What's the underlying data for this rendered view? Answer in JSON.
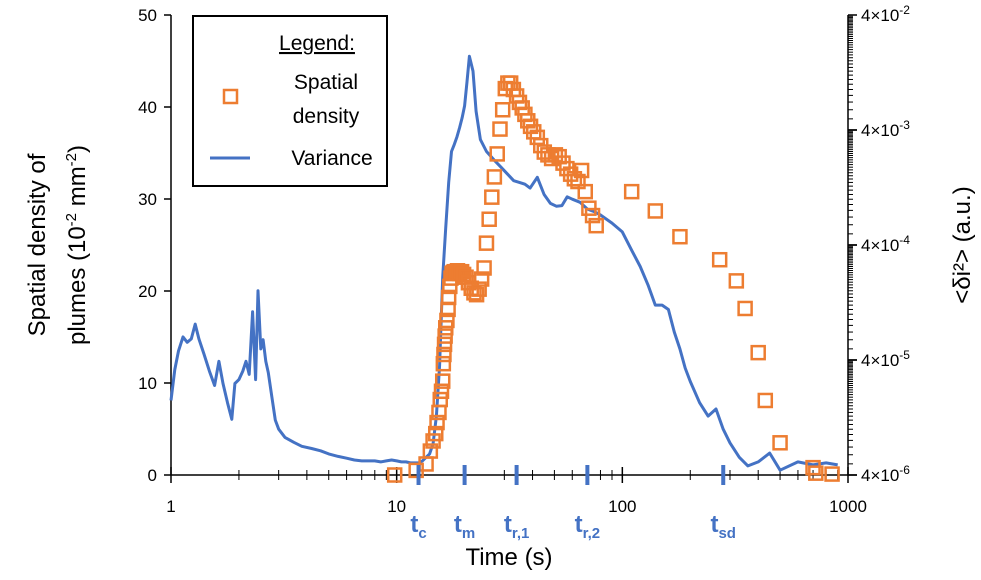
{
  "chart_data": {
    "type": "line+scatter",
    "xlabel": "Time (s)",
    "x_scale": "log",
    "xlim": [
      1,
      1000
    ],
    "x_ticks": [
      {
        "value": 1,
        "label": "1"
      },
      {
        "value": 10,
        "label": "10"
      },
      {
        "value": 100,
        "label": "100"
      },
      {
        "value": 1000,
        "label": "1000"
      }
    ],
    "ylabel_left": {
      "line1": "Spatial density of",
      "line2_pre": "plumes (10",
      "line2_sup1": "-2",
      "line2_mid": " mm",
      "line2_sup2": "-2",
      "line2_post": ")"
    },
    "ylim_left": [
      0,
      50
    ],
    "y_ticks_left": [
      {
        "value": 0,
        "label": "0"
      },
      {
        "value": 10,
        "label": "10"
      },
      {
        "value": 20,
        "label": "20"
      },
      {
        "value": 30,
        "label": "30"
      },
      {
        "value": 40,
        "label": "40"
      },
      {
        "value": 50,
        "label": "50"
      }
    ],
    "ylabel_right": "<δi²> (a.u.)",
    "y_scale_right": "log",
    "ylim_right": [
      4e-06,
      0.04
    ],
    "y_ticks_right": [
      {
        "value": 4e-06,
        "base": "4×10",
        "exp": "-6"
      },
      {
        "value": 4e-05,
        "base": "4×10",
        "exp": "-5"
      },
      {
        "value": 0.0004,
        "base": "4×10",
        "exp": "-4"
      },
      {
        "value": 0.004,
        "base": "4×10",
        "exp": "-3"
      },
      {
        "value": 0.04,
        "base": "4×10",
        "exp": "-2"
      }
    ],
    "legend": {
      "title": "Legend:",
      "items": [
        {
          "label_lines": [
            "Spatial",
            "density"
          ],
          "marker": "square-open",
          "color": "#ED7D31"
        },
        {
          "label_lines": [
            "Variance"
          ],
          "marker": "line",
          "color": "#4472C4"
        }
      ],
      "position": "top-left"
    },
    "series": [
      {
        "name": "Spatial density",
        "axis": "left",
        "marker": "square-open",
        "color": "#ED7D31",
        "x": [
          9.8,
          12.2,
          13.5,
          14.1,
          14.5,
          14.9,
          15.1,
          15.4,
          15.6,
          15.8,
          16.0,
          16.1,
          16.2,
          16.3,
          16.4,
          16.5,
          16.7,
          16.9,
          17.0,
          17.2,
          17.4,
          17.6,
          17.8,
          18.0,
          18.3,
          18.6,
          19.0,
          19.4,
          19.8,
          20.3,
          20.8,
          21.4,
          22.0,
          22.6,
          23.2,
          23.8,
          24.4,
          25.0,
          25.7,
          26.4,
          27.1,
          27.9,
          28.7,
          29.5,
          30.3,
          31.1,
          32.0,
          32.9,
          34.0,
          35.0,
          36.0,
          37.0,
          38.1,
          39.2,
          40.5,
          42.0,
          43.5,
          45.1,
          46.8,
          48.6,
          50.5,
          52.5,
          54.6,
          56.8,
          59.0,
          61.3,
          63.6,
          66.0,
          68.5,
          71.1,
          73.8,
          76.6,
          110.0,
          140.0,
          180.0,
          270.0,
          320.0,
          350.0,
          400.0,
          430.0,
          500.0,
          700.0,
          720.0,
          850.0
        ],
        "y": [
          0.0,
          0.5,
          1.2,
          2.6,
          3.7,
          4.5,
          5.7,
          6.8,
          8.2,
          9.1,
          10.2,
          12.1,
          13.1,
          14.2,
          15.1,
          16.0,
          16.8,
          18.0,
          19.3,
          20.5,
          21.4,
          21.9,
          22.0,
          22.1,
          22.0,
          22.2,
          21.9,
          22.1,
          21.8,
          21.5,
          20.9,
          20.3,
          19.8,
          19.6,
          20.2,
          21.3,
          22.5,
          25.2,
          27.8,
          30.2,
          32.4,
          34.9,
          37.6,
          39.7,
          42.0,
          42.6,
          42.6,
          41.9,
          41.2,
          40.5,
          39.9,
          39.2,
          38.5,
          37.9,
          37.3,
          36.7,
          35.8,
          35.1,
          34.8,
          34.4,
          34.8,
          34.6,
          33.9,
          33.3,
          32.7,
          32.2,
          31.9,
          33.1,
          30.8,
          29.0,
          28.2,
          27.1,
          30.8,
          28.7,
          25.9,
          23.4,
          21.1,
          18.1,
          13.3,
          8.1,
          3.5,
          0.8,
          0.2,
          0.1
        ]
      },
      {
        "name": "Variance",
        "axis": "right",
        "marker": "line",
        "color": "#4472C4",
        "x": [
          1.0,
          1.04,
          1.08,
          1.13,
          1.18,
          1.23,
          1.28,
          1.33,
          1.4,
          1.48,
          1.56,
          1.63,
          1.7,
          1.78,
          1.86,
          1.92,
          2.0,
          2.08,
          2.15,
          2.22,
          2.3,
          2.37,
          2.43,
          2.5,
          2.56,
          2.63,
          2.7,
          2.8,
          2.9,
          3.0,
          3.2,
          3.5,
          3.8,
          4.2,
          4.6,
          5.0,
          5.5,
          6.0,
          6.5,
          7.0,
          7.5,
          8.0,
          8.5,
          9.0,
          9.5,
          10.0,
          10.5,
          11.0,
          11.5,
          12.0,
          12.5,
          13.0,
          13.5,
          14.0,
          14.5,
          15.0,
          15.5,
          16.0,
          16.5,
          17.0,
          17.5,
          18.0,
          18.5,
          19.0,
          19.5,
          20.0,
          20.5,
          21.0,
          21.8,
          22.5,
          23.5,
          25.0,
          27.0,
          29.0,
          31.0,
          33.0,
          35.0,
          37.0,
          39.0,
          42.0,
          45.0,
          48.0,
          51.0,
          54.0,
          57.0,
          60.0,
          65.0,
          70.0,
          75.0,
          80.0,
          90.0,
          100.0,
          110.0,
          120.0,
          130.0,
          140.0,
          150.0,
          160.0,
          170.0,
          180.0,
          190.0,
          200.0,
          220.0,
          240.0,
          260.0,
          280.0,
          300.0,
          330.0,
          360.0,
          400.0,
          450.0,
          500.0,
          600.0,
          700.0,
          800.0,
          900.0
        ],
        "y": [
          1.78e-05,
          3.3e-05,
          4.8e-05,
          6.35e-05,
          5.7e-05,
          6.1e-05,
          8.2e-05,
          6.1e-05,
          4.5e-05,
          3.2e-05,
          2.4e-05,
          3.9e-05,
          2.5e-05,
          1.7e-05,
          1.22e-05,
          2.5e-05,
          2.7e-05,
          3.2e-05,
          3.9e-05,
          3e-05,
          0.000105,
          2.7e-05,
          0.00016,
          5e-05,
          6e-05,
          3.9e-05,
          3.1e-05,
          1.9e-05,
          1.2e-05,
          1e-05,
          8.5e-06,
          7.7e-06,
          7.1e-06,
          6.8e-06,
          6.5e-06,
          6.1e-06,
          5.8e-06,
          5.6e-06,
          5.4e-06,
          5.3e-06,
          5.3e-06,
          5.3e-06,
          5.2e-06,
          5.3e-06,
          5.4e-06,
          5.3e-06,
          5.2e-06,
          5.2e-06,
          5.1e-06,
          5.1e-06,
          5.1e-06,
          5.3e-06,
          5.7e-06,
          6.1e-06,
          7.5e-06,
          1.3e-05,
          3.6e-05,
          0.00021,
          0.00056,
          0.0014,
          0.0026,
          0.003,
          0.0035,
          0.0042,
          0.0051,
          0.0065,
          0.0105,
          0.0175,
          0.013,
          0.0058,
          0.0033,
          0.0026,
          0.0022,
          0.0019,
          0.00165,
          0.00145,
          0.0014,
          0.00135,
          0.00125,
          0.00155,
          0.0011,
          0.00092,
          0.00087,
          0.00088,
          0.00105,
          0.001,
          0.00094,
          0.00082,
          0.00078,
          0.00073,
          0.00062,
          0.00052,
          0.00036,
          0.00026,
          0.00018,
          0.00012,
          0.00012,
          0.00011,
          7e-05,
          5e-05,
          3.4e-05,
          2.6e-05,
          1.7e-05,
          1.3e-05,
          1.5e-05,
          1e-05,
          7.6e-06,
          5.7e-06,
          4.8e-06,
          5.2e-06,
          6.2e-06,
          4.4e-06,
          5.2e-06,
          4.9e-06,
          5.1e-06,
          4.9e-06
        ]
      }
    ],
    "annotations": [
      {
        "x": 12.5,
        "base": "t",
        "sub": "c"
      },
      {
        "x": 20.0,
        "base": "t",
        "sub": "m"
      },
      {
        "x": 34.0,
        "base": "t",
        "sub": "r,1"
      },
      {
        "x": 70.0,
        "base": "t",
        "sub": "r,2"
      },
      {
        "x": 280.0,
        "base": "t",
        "sub": "sd"
      }
    ],
    "grid": false
  }
}
